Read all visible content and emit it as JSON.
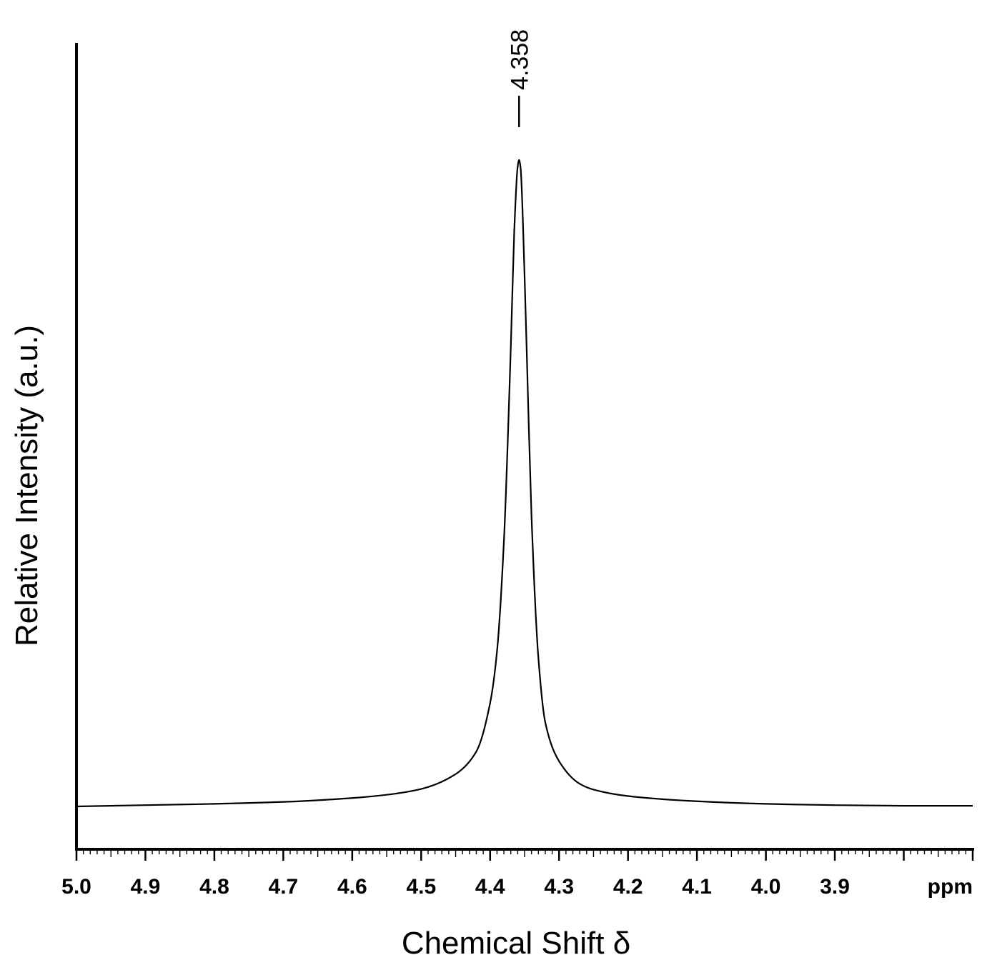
{
  "chart_data": {
    "type": "line",
    "title": "",
    "xlabel": "Chemical Shift δ",
    "ylabel": "Relative Intensity (a.u.)",
    "x_unit_label": "ppm",
    "xlim": [
      5.0,
      3.7
    ],
    "x_reversed": true,
    "ylim": [
      0,
      1
    ],
    "x_ticks": [
      {
        "value": 5.0,
        "label": "5.0"
      },
      {
        "value": 4.9,
        "label": "4.9"
      },
      {
        "value": 4.8,
        "label": "4.8"
      },
      {
        "value": 4.7,
        "label": "4.7"
      },
      {
        "value": 4.6,
        "label": "4.6"
      },
      {
        "value": 4.5,
        "label": "4.5"
      },
      {
        "value": 4.4,
        "label": "4.4"
      },
      {
        "value": 4.3,
        "label": "4.3"
      },
      {
        "value": 4.2,
        "label": "4.2"
      },
      {
        "value": 4.1,
        "label": "4.1"
      },
      {
        "value": 4.0,
        "label": "4.0"
      },
      {
        "value": 3.9,
        "label": "3.9"
      }
    ],
    "minor_tick_step": 0.01,
    "series": [
      {
        "x": [
          5.0,
          4.9,
          4.8,
          4.7,
          4.6,
          4.55,
          4.5,
          4.45,
          4.42,
          4.4,
          4.39,
          4.38,
          4.37,
          4.365,
          4.36,
          4.358,
          4.356,
          4.35,
          4.345,
          4.34,
          4.33,
          4.32,
          4.3,
          4.27,
          4.25,
          4.2,
          4.1,
          4.0,
          3.9,
          3.8,
          3.7
        ],
        "y": [
          0.0,
          0.002,
          0.004,
          0.007,
          0.013,
          0.018,
          0.027,
          0.05,
          0.085,
          0.16,
          0.24,
          0.41,
          0.71,
          0.89,
          0.99,
          1.0,
          0.99,
          0.82,
          0.63,
          0.45,
          0.23,
          0.13,
          0.07,
          0.035,
          0.026,
          0.016,
          0.008,
          0.004,
          0.002,
          0.001,
          0.001
        ]
      }
    ],
    "annotations": [
      {
        "text": "4.358",
        "x": 4.358,
        "type": "peak-label"
      }
    ],
    "grid": false,
    "legend": "none",
    "line_color": "#000000"
  }
}
